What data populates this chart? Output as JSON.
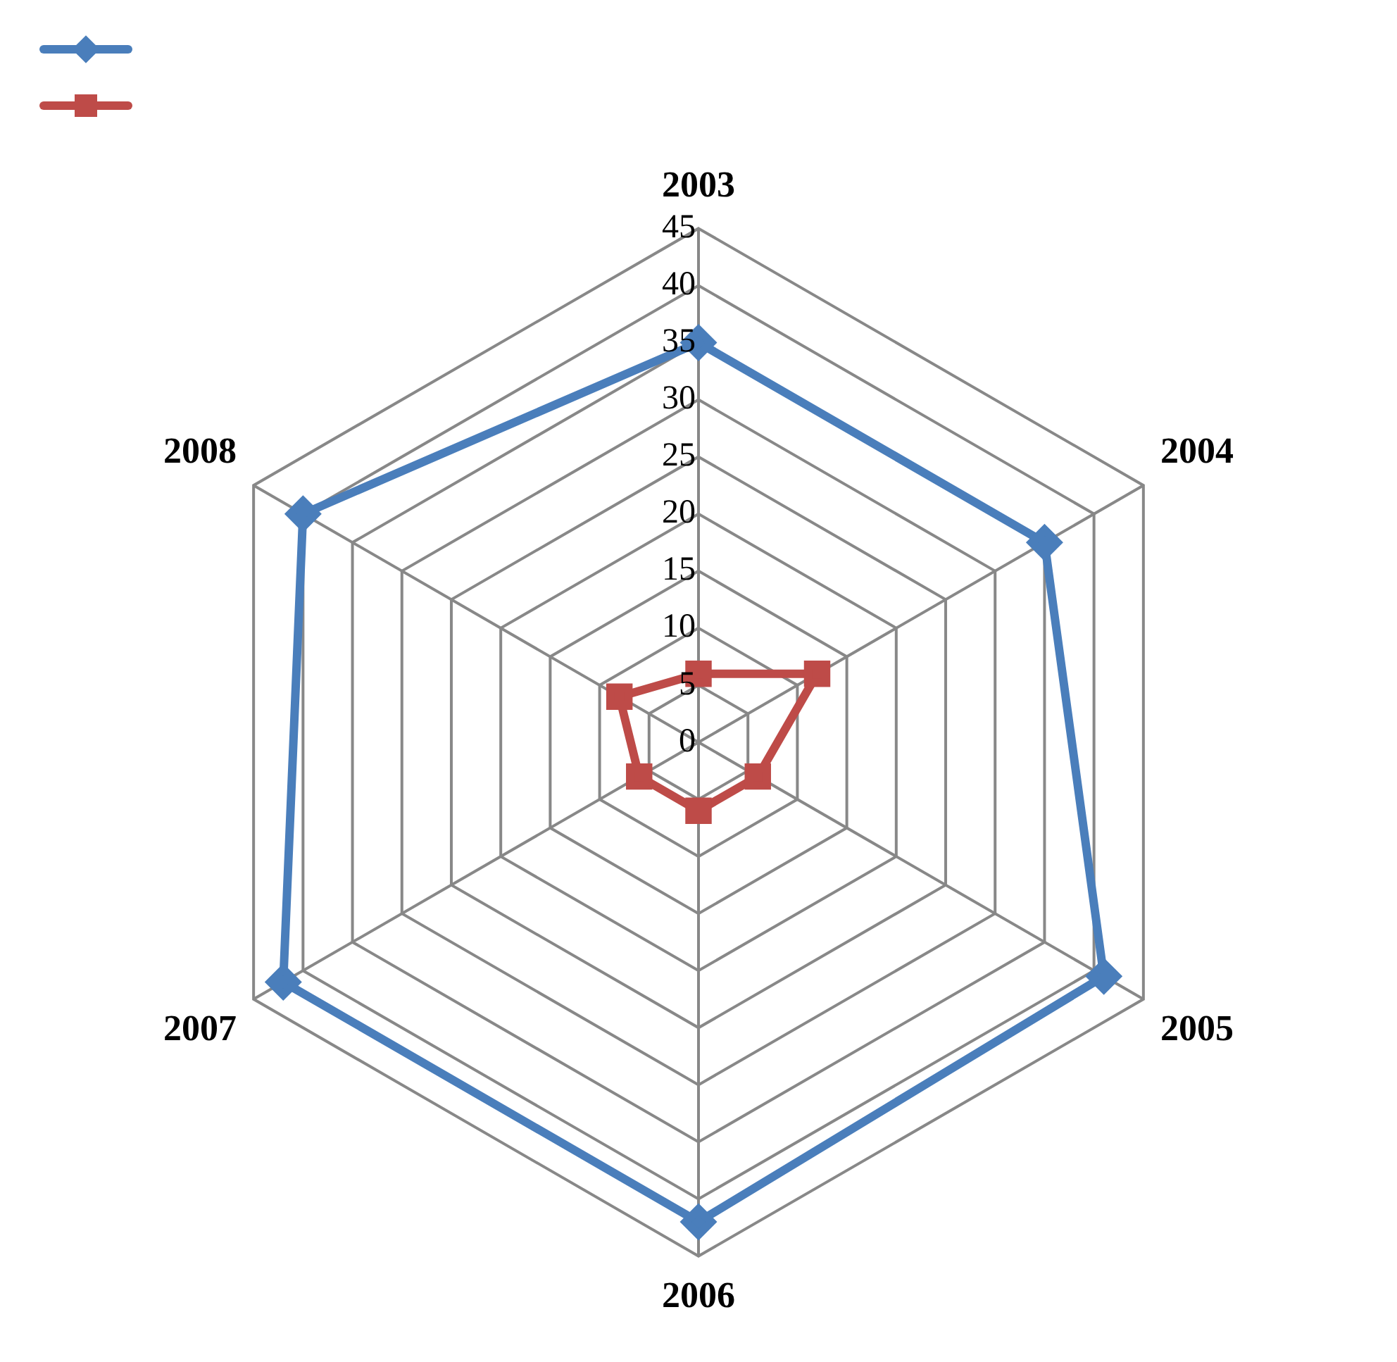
{
  "chart_data": {
    "type": "radar",
    "categories": [
      "2003",
      "2004",
      "2005",
      "2006",
      "2007",
      "2008"
    ],
    "series": [
      {
        "color": "#4a7ebb",
        "values": [
          35,
          35,
          41,
          42,
          42,
          40
        ],
        "marker": "diamond"
      },
      {
        "color": "#be4b48",
        "values": [
          6,
          12,
          6,
          6,
          6,
          8
        ],
        "marker": "square"
      }
    ],
    "ylim": [
      0,
      45
    ],
    "yticks": [
      0,
      5,
      10,
      15,
      20,
      25,
      30,
      35,
      40,
      45
    ],
    "grid": true
  }
}
